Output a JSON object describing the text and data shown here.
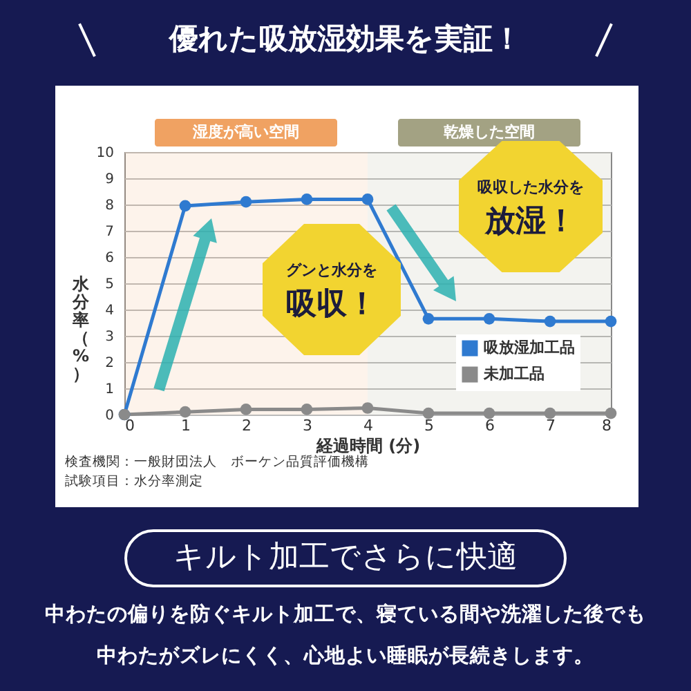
{
  "chart_data": {
    "type": "line",
    "title": "優れた吸放湿効果を実証！",
    "xlabel": "経過時間 (分)",
    "ylabel": "水分率（%）",
    "x": [
      0,
      1,
      2,
      3,
      4,
      5,
      6,
      7,
      8
    ],
    "series": [
      {
        "name": "吸放湿加工品",
        "color": "#2f7ad0",
        "values": [
          0,
          7.95,
          8.1,
          8.2,
          8.2,
          3.65,
          3.65,
          3.55,
          3.55
        ]
      },
      {
        "name": "未加工品",
        "color": "#8a8a8a",
        "values": [
          0,
          0.1,
          0.2,
          0.2,
          0.25,
          0.05,
          0.05,
          0.05,
          0.05
        ]
      }
    ],
    "xlim": [
      0,
      8
    ],
    "xticks": [
      0,
      1,
      2,
      3,
      4,
      5,
      6,
      7,
      8
    ],
    "ylim": [
      0,
      10
    ],
    "yticks": [
      0,
      1,
      2,
      3,
      4,
      5,
      6,
      7,
      8,
      9,
      10
    ],
    "grid": "y",
    "marker": "circle",
    "legend": "bottom right",
    "bands": [
      {
        "axis": "x",
        "from": 0,
        "to": 4,
        "label": "湿度が高い空間",
        "color": "#f0a262"
      },
      {
        "axis": "x",
        "from": 4,
        "to": 8,
        "label": "乾燥した空間",
        "color": "#a3a283"
      }
    ],
    "annotations": [
      "グンと水分を",
      "吸収！",
      "吸収した水分を",
      "放湿！",
      "検査機関：一般財団法人　ボーケン品質評価機構",
      "試験項目：水分率測定",
      "キルト加工でさらに快適",
      "中わたの偏りを防ぐキルト加工で、寝ている間や洗濯した後でも",
      "中わたがズレにくく、心地よい睡眠が長続きします。"
    ]
  }
}
